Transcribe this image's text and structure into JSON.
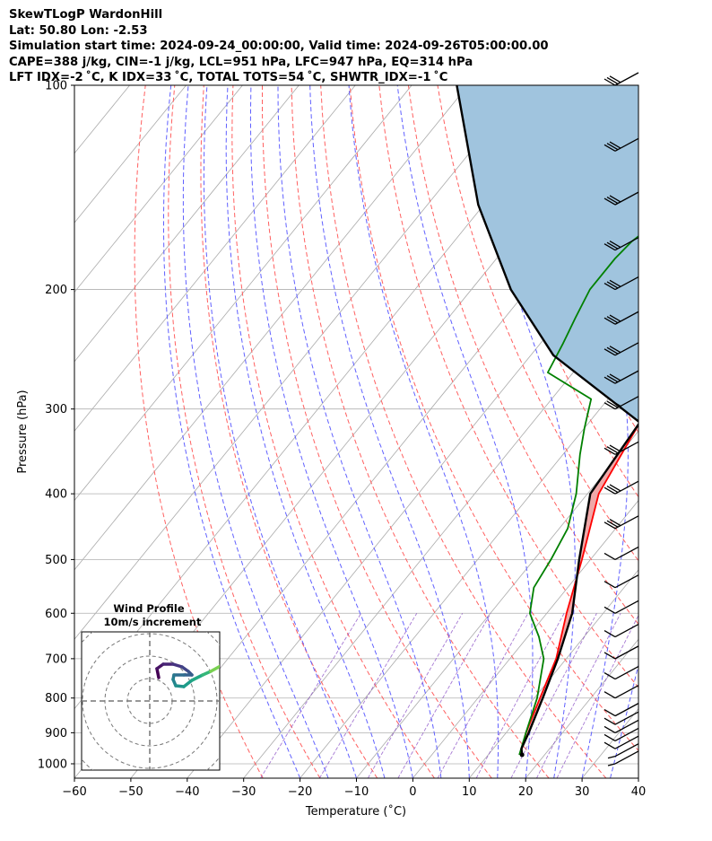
{
  "header": {
    "line1": "SkewTLogP WardonHill",
    "line2": "Lat: 50.80   Lon: -2.53",
    "line3": "Simulation start time: 2024-09-24_00:00:00, Valid time: 2024-09-26T05:00:00.00",
    "line4": "CAPE=388 j/kg, CIN=-1 j/kg, LCL=951 hPa, LFC=947 hPa, EQ=314 hPa",
    "line5": "LFT IDX=-2 ˚C, K IDX=33 ˚C, TOTAL TOTS=54 ˚C, SHWTR_IDX=-1 ˚C"
  },
  "colors": {
    "temperature": "#ff0000",
    "dewpoint": "#008000",
    "parcel": "#000000",
    "cape_fill": "#a0c4de",
    "cin_fill": "#f0a8a8",
    "dry_adiabat": "#ff6060",
    "moist_adiabat": "#6060ff",
    "mixing_ratio": "#8040c0",
    "isotherm": "#aaaaaa",
    "grid": "#b0b0b0"
  },
  "chart_data": {
    "type": "line",
    "title": "",
    "xlabel": "Temperature (˚C)",
    "ylabel": "Pressure (hPa)",
    "xlim": [
      -60,
      40
    ],
    "ylim": [
      1050,
      100
    ],
    "y_scale": "log",
    "x_ticks": [
      "−60",
      "−50",
      "−40",
      "−30",
      "−20",
      "−10",
      "0",
      "10",
      "20",
      "30",
      "40"
    ],
    "y_ticks": [
      "100",
      "200",
      "300",
      "400",
      "500",
      "600",
      "700",
      "800",
      "900",
      "1000"
    ],
    "grid": true,
    "series": [
      {
        "key": "temperature",
        "pressure": [
          970,
          900,
          800,
          700,
          600,
          500,
          400,
          314,
          290,
          260,
          230,
          200,
          170,
          150,
          130,
          115,
          100
        ],
        "temp": [
          15.7,
          13.5,
          11.0,
          8.2,
          3.5,
          -1.5,
          -8.0,
          -11.0,
          -13.5,
          -12.0,
          -11.5,
          -12.5,
          -14.5,
          -16.0,
          -17.0,
          -18.0,
          -21.0
        ]
      },
      {
        "key": "dewpoint",
        "pressure": [
          970,
          900,
          800,
          700,
          650,
          600,
          550,
          500,
          450,
          400,
          350,
          320,
          290,
          265,
          240,
          220,
          200,
          180,
          170,
          160,
          150,
          140,
          130,
          120,
          110,
          100
        ],
        "temp": [
          15.5,
          13.5,
          10.5,
          6.0,
          2.0,
          -3.0,
          -6.0,
          -7.0,
          -8.5,
          -12.0,
          -17.0,
          -20.0,
          -23.0,
          -34.5,
          -36.0,
          -37.5,
          -39.0,
          -39.0,
          -38.5,
          -37.0,
          -35.0,
          -33.0,
          -31.0,
          -29.5,
          -28.5,
          -28.0
        ]
      },
      {
        "key": "parcel",
        "pressure": [
          970,
          950,
          900,
          800,
          700,
          600,
          500,
          400,
          314,
          250,
          200,
          150,
          100
        ],
        "temp": [
          16.0,
          15.0,
          14.0,
          11.5,
          8.5,
          4.5,
          -2.0,
          -9.5,
          -11.0,
          -36.0,
          -53.0,
          -71.0,
          -92.0
        ]
      }
    ],
    "annotations": [
      "CAPE region shaded blue between parcel and temperature above LFC",
      "CIN region shaded red near surface"
    ],
    "wind_barbs_pressure": [
      1000,
      975,
      950,
      925,
      900,
      875,
      850,
      800,
      750,
      700,
      650,
      600,
      550,
      500,
      450,
      400,
      350,
      300,
      275,
      250,
      225,
      200,
      175,
      150,
      125,
      100
    ],
    "hodograph": {
      "title": "Wind Profile",
      "subtitle": "10m/s increment"
    }
  }
}
